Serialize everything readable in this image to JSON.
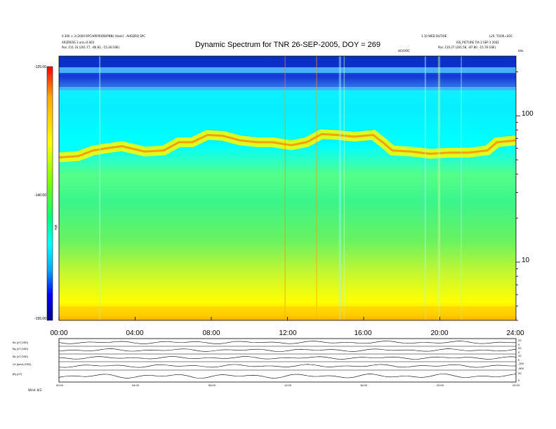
{
  "header": {
    "title": "Dynamic Spectrum for TNR 26-SEP-2005, DOY = 269",
    "top_left_line1": "0.300 + 3 (2000 RPC/HRP/RIOB/PNN) (Vovk) - AHGDRQ SPC",
    "top_left_line2": "ARIZRESS 3 ant=0.003",
    "top_left_line3": "Pos: 211.33 (201.77, -80.81, -15.36 GSE)",
    "top_center_right": "1.10 WED DUTIOE",
    "top_right_line1": "L2S: TOOR=SOC",
    "top_right_line2": "ISS_PICTURE TIA 2 SEP 3 2002",
    "top_right_line3": "Pos: 210.27 (201.58, -87.80, -15.76 GSE)",
    "marker_left": "dGVVOC",
    "khz_unit": "kHz",
    "colorbar_unit": "TNR"
  },
  "footer_label": "Wind: 8/3",
  "chart_data": {
    "type": "heatmap",
    "title": "Dynamic Spectrum for TNR 26-SEP-2005, DOY = 269",
    "xlabel": "",
    "ylabel": "kHz",
    "x_ticks": [
      "00:00",
      "04:00",
      "08:00",
      "12:00",
      "16:00",
      "20:00",
      "24:00"
    ],
    "x_range_hours": [
      0,
      24
    ],
    "y_scale": "log",
    "y_ticks": [
      10,
      100
    ],
    "y_range_khz": [
      4,
      256
    ],
    "colorbar": {
      "ticks": [
        "-125.00",
        "-140.00",
        "-155.00"
      ],
      "range": [
        -155,
        -125
      ],
      "colors": [
        "#00008c",
        "#0000ff",
        "#00aaff",
        "#00ffff",
        "#00ff80",
        "#80ff00",
        "#ffff00",
        "#ffaa00",
        "#ff0000"
      ]
    },
    "plasma_line_khz": [
      [
        0.0,
        52
      ],
      [
        1.0,
        53
      ],
      [
        1.8,
        58
      ],
      [
        2.5,
        60
      ],
      [
        3.3,
        62
      ],
      [
        4.5,
        57
      ],
      [
        5.5,
        58
      ],
      [
        6.3,
        66
      ],
      [
        7.0,
        66
      ],
      [
        7.8,
        74
      ],
      [
        8.6,
        73
      ],
      [
        9.5,
        68
      ],
      [
        10.4,
        66
      ],
      [
        11.2,
        66
      ],
      [
        12.2,
        63
      ],
      [
        13.0,
        66
      ],
      [
        13.8,
        75
      ],
      [
        14.6,
        74
      ],
      [
        15.5,
        72
      ],
      [
        16.5,
        74
      ],
      [
        17.0,
        66
      ],
      [
        17.5,
        58
      ],
      [
        18.5,
        57
      ],
      [
        19.5,
        55
      ],
      [
        20.5,
        56
      ],
      [
        21.5,
        56
      ],
      [
        22.5,
        58
      ],
      [
        23.0,
        66
      ],
      [
        24.0,
        68
      ]
    ],
    "subpanels": [
      {
        "label": "Bx (nT,GSE)",
        "right_ticks": [
          "20",
          "0"
        ]
      },
      {
        "label": "By (nT,GSE)",
        "right_ticks": [
          "20",
          "0"
        ]
      },
      {
        "label": "Bz (nT,GSE)",
        "right_ticks": [
          "20",
          "0"
        ]
      },
      {
        "label": "Vx (km/s,GSE)",
        "right_ticks": [
          "-200",
          "-800"
        ]
      },
      {
        "label": "|B| (nT)",
        "right_ticks": [
          "20",
          "0"
        ]
      }
    ],
    "bottom_ticks": [
      "00:00",
      "04:00",
      "08:00",
      "12:00",
      "16:00",
      "20:00",
      "24:00"
    ]
  }
}
